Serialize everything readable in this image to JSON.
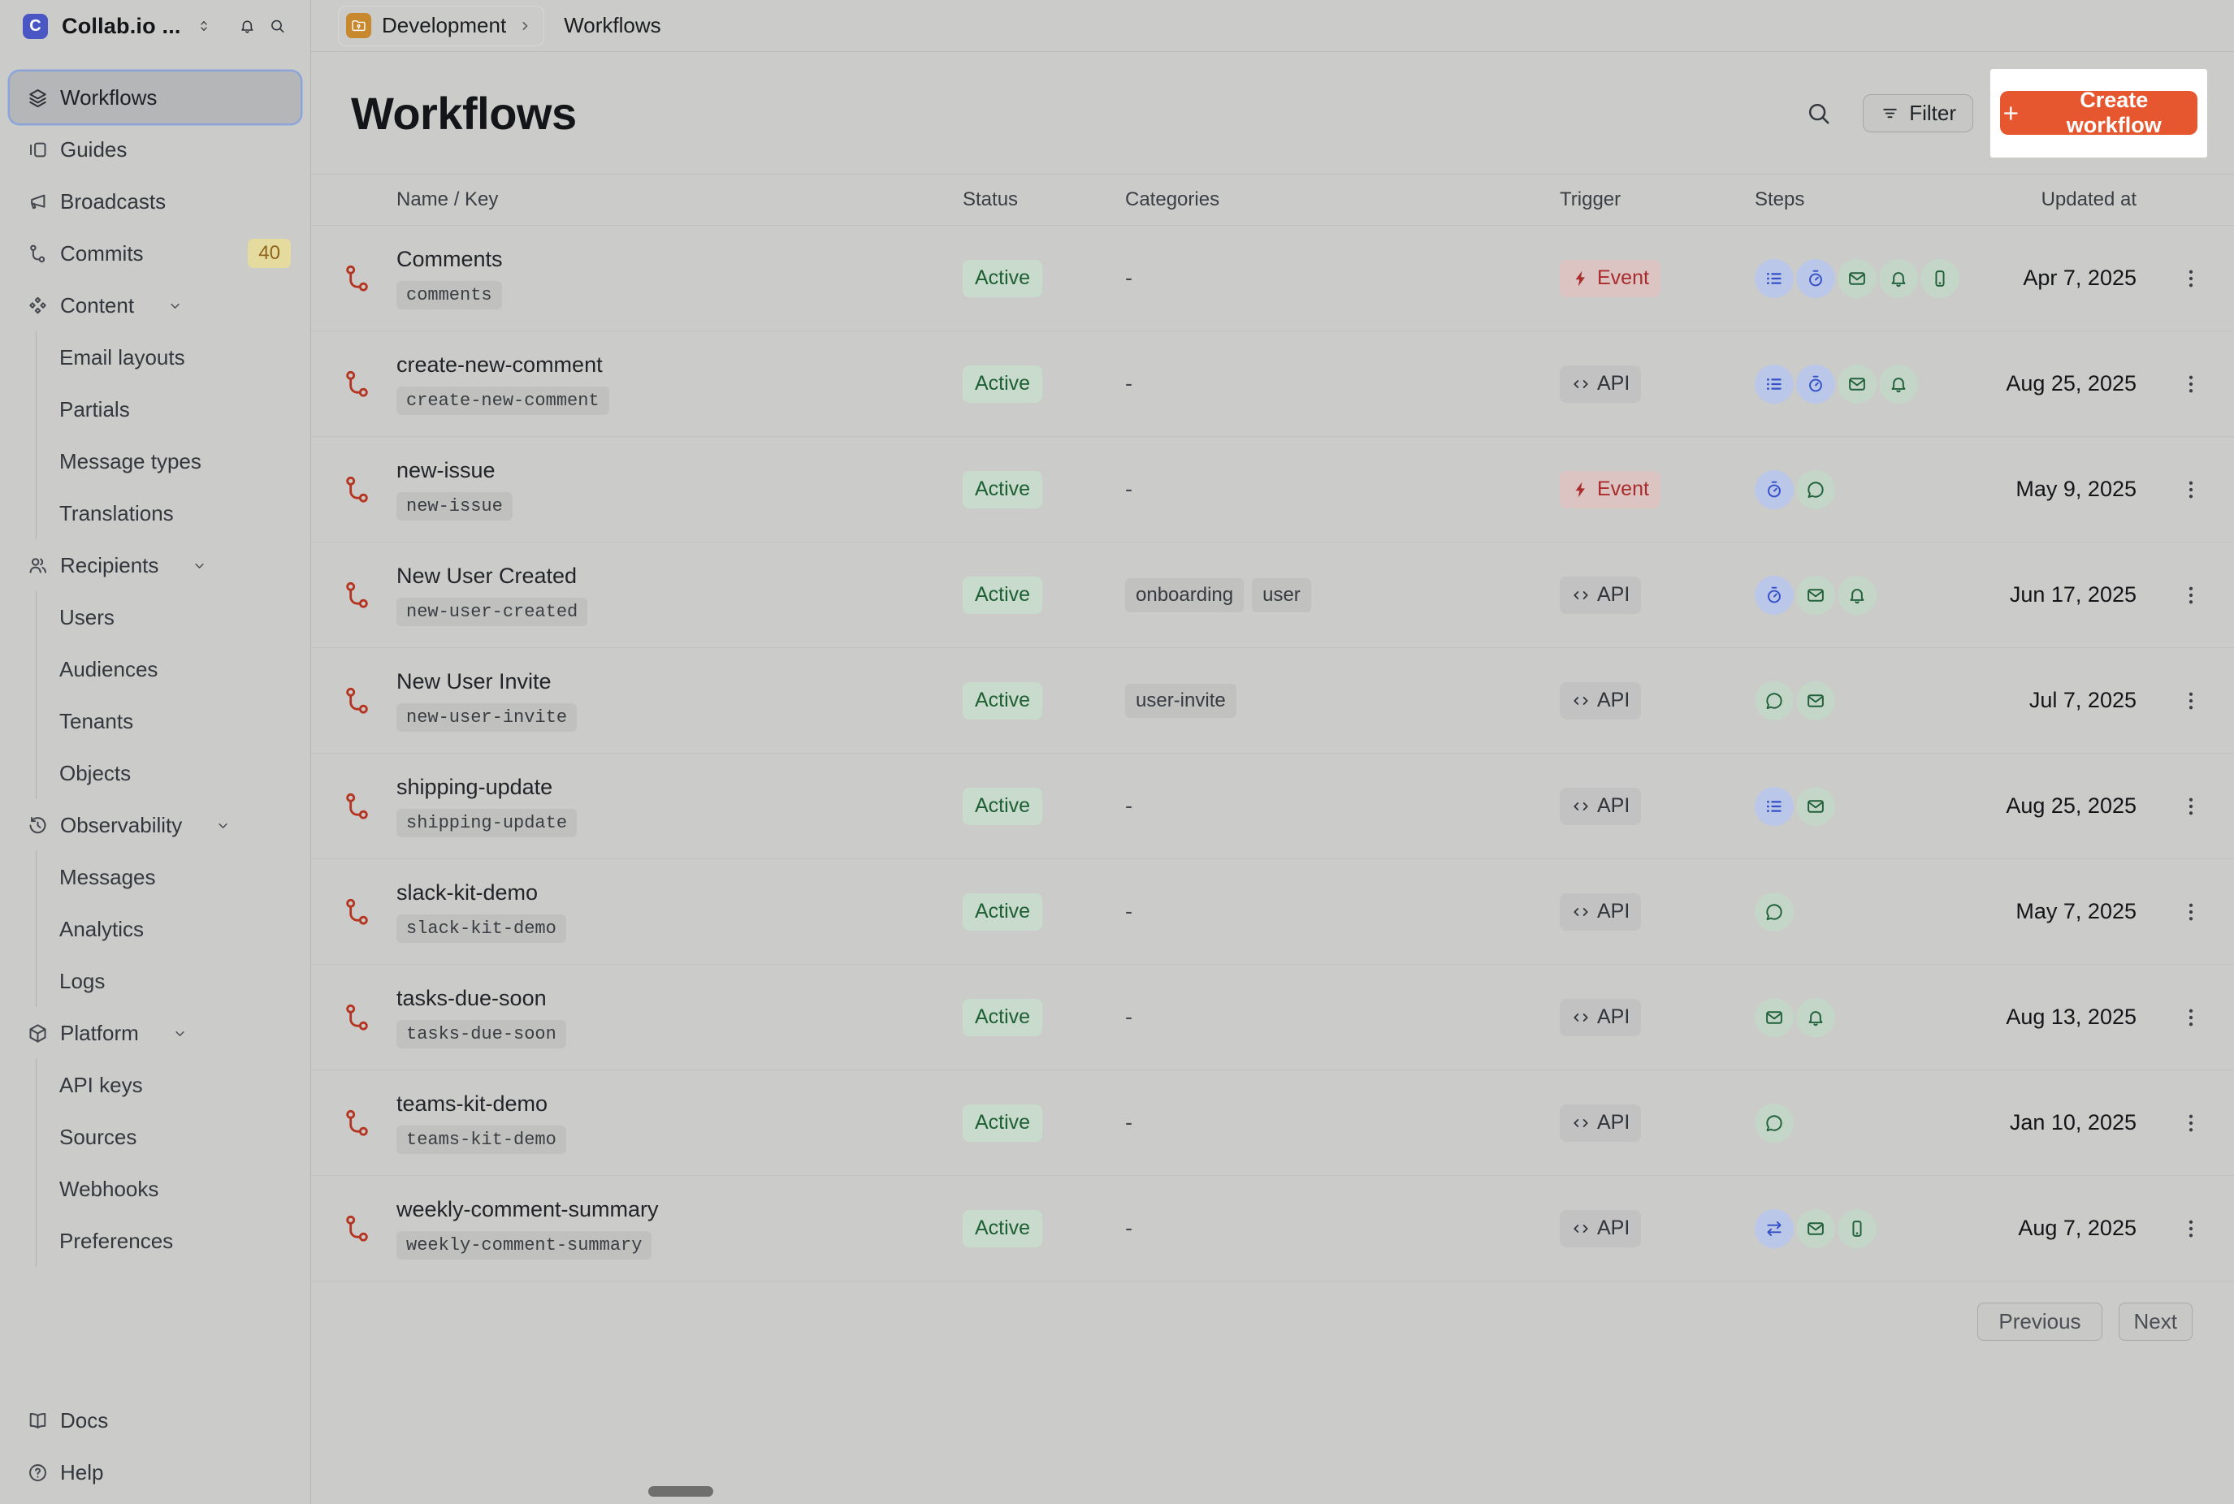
{
  "workspace": {
    "initial": "C",
    "name": "Collab.io ..."
  },
  "sidebar": {
    "items": [
      {
        "label": "Workflows",
        "icon": "layers",
        "active": true
      },
      {
        "label": "Guides",
        "icon": "columns"
      },
      {
        "label": "Broadcasts",
        "icon": "megaphone"
      },
      {
        "label": "Commits",
        "icon": "commit",
        "badge": "40"
      },
      {
        "label": "Content",
        "icon": "shapes",
        "expandable": true,
        "children": [
          {
            "label": "Email layouts"
          },
          {
            "label": "Partials"
          },
          {
            "label": "Message types"
          },
          {
            "label": "Translations"
          }
        ]
      },
      {
        "label": "Recipients",
        "icon": "users",
        "expandable": true,
        "children": [
          {
            "label": "Users"
          },
          {
            "label": "Audiences"
          },
          {
            "label": "Tenants"
          },
          {
            "label": "Objects"
          }
        ]
      },
      {
        "label": "Observability",
        "icon": "history",
        "expandable": true,
        "children": [
          {
            "label": "Messages"
          },
          {
            "label": "Analytics"
          },
          {
            "label": "Logs"
          }
        ]
      },
      {
        "label": "Platform",
        "icon": "box",
        "expandable": true,
        "children": [
          {
            "label": "API keys"
          },
          {
            "label": "Sources"
          },
          {
            "label": "Webhooks"
          },
          {
            "label": "Preferences"
          }
        ]
      }
    ],
    "footer": [
      {
        "label": "Docs",
        "icon": "book"
      },
      {
        "label": "Help",
        "icon": "help"
      }
    ]
  },
  "topbar": {
    "environment": "Development",
    "current": "Workflows"
  },
  "header": {
    "title": "Workflows",
    "filter_label": "Filter",
    "create_label": "Create workflow"
  },
  "table": {
    "columns": [
      "Name / Key",
      "Status",
      "Categories",
      "Trigger",
      "Steps",
      "Updated at"
    ],
    "rows": [
      {
        "name": "Comments",
        "key": "comments",
        "status": "Active",
        "categories": [],
        "trigger": "Event",
        "steps": [
          "batch",
          "delay",
          "email",
          "in_app",
          "push"
        ],
        "updated_at": "Apr 7, 2025"
      },
      {
        "name": "create-new-comment",
        "key": "create-new-comment",
        "status": "Active",
        "categories": [],
        "trigger": "API",
        "steps": [
          "batch",
          "delay",
          "email",
          "in_app"
        ],
        "updated_at": "Aug 25, 2025"
      },
      {
        "name": "new-issue",
        "key": "new-issue",
        "status": "Active",
        "categories": [],
        "trigger": "Event",
        "steps": [
          "delay",
          "chat"
        ],
        "updated_at": "May 9, 2025"
      },
      {
        "name": "New User Created",
        "key": "new-user-created",
        "status": "Active",
        "categories": [
          "onboarding",
          "user"
        ],
        "trigger": "API",
        "steps": [
          "delay",
          "email",
          "in_app"
        ],
        "updated_at": "Jun 17, 2025"
      },
      {
        "name": "New User Invite",
        "key": "new-user-invite",
        "status": "Active",
        "categories": [
          "user-invite"
        ],
        "trigger": "API",
        "steps": [
          "chat",
          "email"
        ],
        "updated_at": "Jul 7, 2025"
      },
      {
        "name": "shipping-update",
        "key": "shipping-update",
        "status": "Active",
        "categories": [],
        "trigger": "API",
        "steps": [
          "batch",
          "email"
        ],
        "updated_at": "Aug 25, 2025"
      },
      {
        "name": "slack-kit-demo",
        "key": "slack-kit-demo",
        "status": "Active",
        "categories": [],
        "trigger": "API",
        "steps": [
          "chat"
        ],
        "updated_at": "May 7, 2025"
      },
      {
        "name": "tasks-due-soon",
        "key": "tasks-due-soon",
        "status": "Active",
        "categories": [],
        "trigger": "API",
        "steps": [
          "email",
          "in_app"
        ],
        "updated_at": "Aug 13, 2025"
      },
      {
        "name": "teams-kit-demo",
        "key": "teams-kit-demo",
        "status": "Active",
        "categories": [],
        "trigger": "API",
        "steps": [
          "chat"
        ],
        "updated_at": "Jan 10, 2025"
      },
      {
        "name": "weekly-comment-summary",
        "key": "weekly-comment-summary",
        "status": "Active",
        "categories": [],
        "trigger": "API",
        "steps": [
          "fetch",
          "email",
          "push"
        ],
        "updated_at": "Aug 7, 2025"
      }
    ],
    "empty_categories_placeholder": "-"
  },
  "pagination": {
    "previous": "Previous",
    "next": "Next"
  },
  "colors": {
    "accent": "#e7572f",
    "highlight_box": "#ffffff",
    "active_badge_bg": "#c8dbcc",
    "active_badge_text": "#1d5f33",
    "event_badge_bg": "#dcc4c3",
    "event_badge_text": "#aa2b2c",
    "api_badge_bg": "#c2c2c3",
    "api_badge_text": "#303338",
    "step_blue_bg": "#bac7e9",
    "step_blue_icon": "#3350c8",
    "step_green_bg": "#c3d6c7",
    "step_green_icon": "#20613a",
    "workflow_row_icon": "#b43421",
    "logo_bg": "#4956c4",
    "environment_folder_bg": "#c8892e",
    "commits_badge_bg": "#e5db9f",
    "commits_badge_text": "#8f641a",
    "sidebar_selected_ring": "#8ca4dc"
  }
}
